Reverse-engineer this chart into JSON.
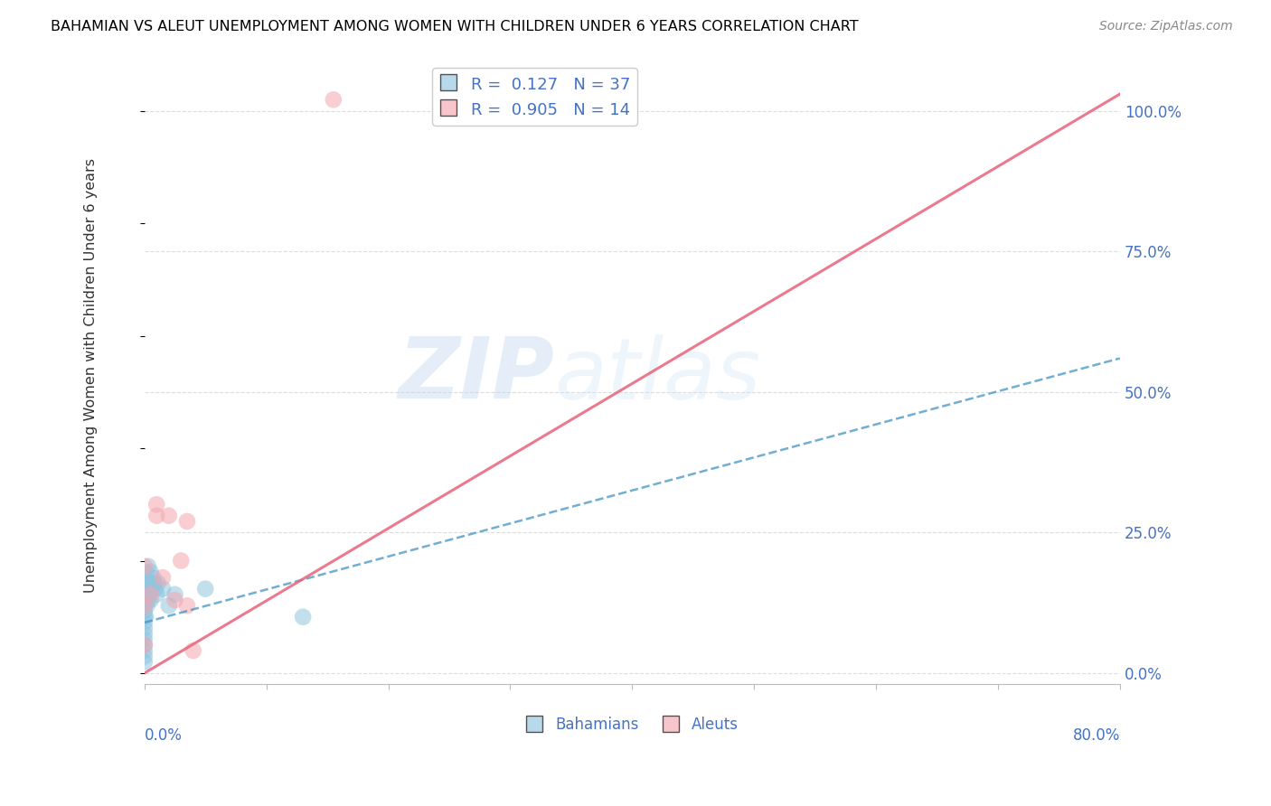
{
  "title": "BAHAMIAN VS ALEUT UNEMPLOYMENT AMONG WOMEN WITH CHILDREN UNDER 6 YEARS CORRELATION CHART",
  "source": "Source: ZipAtlas.com",
  "ylabel": "Unemployment Among Women with Children Under 6 years",
  "watermark_zip": "ZIP",
  "watermark_atlas": "atlas",
  "bahamian_R": 0.127,
  "bahamian_N": 37,
  "aleut_R": 0.905,
  "aleut_N": 14,
  "bahamian_color": "#92c5de",
  "aleut_color": "#f4a6b0",
  "bahamian_line_color": "#4393c3",
  "aleut_line_color": "#e8637a",
  "ytick_labels": [
    "0.0%",
    "25.0%",
    "50.0%",
    "75.0%",
    "100.0%"
  ],
  "ytick_values": [
    0.0,
    0.25,
    0.5,
    0.75,
    1.0
  ],
  "xlim": [
    0.0,
    0.8
  ],
  "ylim": [
    -0.02,
    1.08
  ],
  "legend_color": "#4472c4",
  "background_color": "#ffffff",
  "grid_color": "#d9d9d9",
  "bahamian_line_x0": 0.0,
  "bahamian_line_y0": 0.09,
  "bahamian_line_x1": 0.8,
  "bahamian_line_y1": 0.56,
  "aleut_line_x0": 0.0,
  "aleut_line_y0": 0.0,
  "aleut_line_x1": 0.8,
  "aleut_line_y1": 1.03,
  "bahamian_pts_x": [
    0.0,
    0.0,
    0.0,
    0.0,
    0.0,
    0.0,
    0.0,
    0.0,
    0.0,
    0.0,
    0.0,
    0.0,
    0.0,
    0.0,
    0.0,
    0.0,
    0.001,
    0.001,
    0.001,
    0.002,
    0.002,
    0.003,
    0.003,
    0.004,
    0.005,
    0.005,
    0.006,
    0.007,
    0.008,
    0.009,
    0.01,
    0.011,
    0.015,
    0.02,
    0.025,
    0.05,
    0.13
  ],
  "bahamian_pts_y": [
    0.02,
    0.03,
    0.04,
    0.05,
    0.06,
    0.07,
    0.08,
    0.09,
    0.1,
    0.11,
    0.12,
    0.13,
    0.14,
    0.15,
    0.16,
    0.17,
    0.1,
    0.14,
    0.18,
    0.12,
    0.16,
    0.13,
    0.19,
    0.14,
    0.13,
    0.18,
    0.16,
    0.17,
    0.16,
    0.15,
    0.14,
    0.16,
    0.15,
    0.12,
    0.14,
    0.15,
    0.1
  ],
  "aleut_pts_x": [
    0.0,
    0.0,
    0.0,
    0.005,
    0.01,
    0.01,
    0.015,
    0.02,
    0.025,
    0.03,
    0.035,
    0.035,
    0.04,
    0.155
  ],
  "aleut_pts_y": [
    0.05,
    0.12,
    0.19,
    0.14,
    0.28,
    0.3,
    0.17,
    0.28,
    0.13,
    0.2,
    0.12,
    0.27,
    0.04,
    1.02
  ],
  "scatter_size": 180
}
